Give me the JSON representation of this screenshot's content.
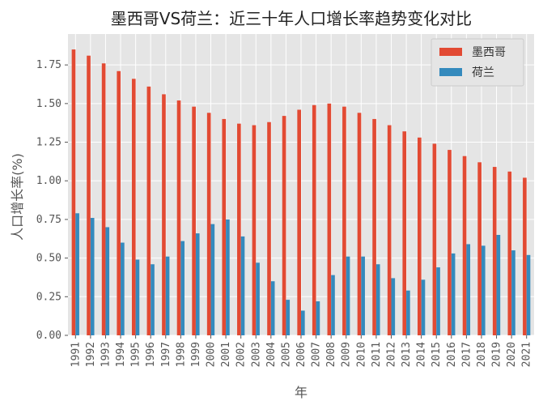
{
  "chart_data": {
    "type": "bar",
    "title": "墨西哥VS荷兰：近三十年人口增长率趋势变化对比",
    "xlabel": "年",
    "ylabel": "人口增长率(%)",
    "categories": [
      "1991",
      "1992",
      "1993",
      "1994",
      "1995",
      "1996",
      "1997",
      "1998",
      "1999",
      "2000",
      "2001",
      "2002",
      "2003",
      "2004",
      "2005",
      "2006",
      "2007",
      "2008",
      "2009",
      "2010",
      "2011",
      "2012",
      "2013",
      "2014",
      "2015",
      "2016",
      "2017",
      "2018",
      "2019",
      "2020",
      "2021"
    ],
    "series": [
      {
        "name": "墨西哥",
        "color": "#E24A33",
        "values": [
          1.85,
          1.81,
          1.76,
          1.71,
          1.66,
          1.61,
          1.56,
          1.52,
          1.48,
          1.44,
          1.4,
          1.37,
          1.36,
          1.38,
          1.42,
          1.46,
          1.49,
          1.5,
          1.48,
          1.44,
          1.4,
          1.36,
          1.32,
          1.28,
          1.24,
          1.2,
          1.16,
          1.12,
          1.09,
          1.06,
          1.02
        ]
      },
      {
        "name": "荷兰",
        "color": "#348ABD",
        "values": [
          0.79,
          0.76,
          0.7,
          0.6,
          0.49,
          0.46,
          0.51,
          0.61,
          0.66,
          0.72,
          0.75,
          0.64,
          0.47,
          0.35,
          0.23,
          0.16,
          0.22,
          0.39,
          0.51,
          0.51,
          0.46,
          0.37,
          0.29,
          0.36,
          0.44,
          0.53,
          0.59,
          0.58,
          0.65,
          0.55,
          0.52
        ]
      }
    ],
    "ylim": [
      0,
      1.95
    ],
    "yticks": [
      "0.00",
      "0.25",
      "0.50",
      "0.75",
      "1.00",
      "1.25",
      "1.50",
      "1.75"
    ],
    "ytick_values": [
      0,
      0.25,
      0.5,
      0.75,
      1.0,
      1.25,
      1.5,
      1.75
    ],
    "grid": true,
    "legend_position": "top-right",
    "background": "#E5E5E5"
  }
}
